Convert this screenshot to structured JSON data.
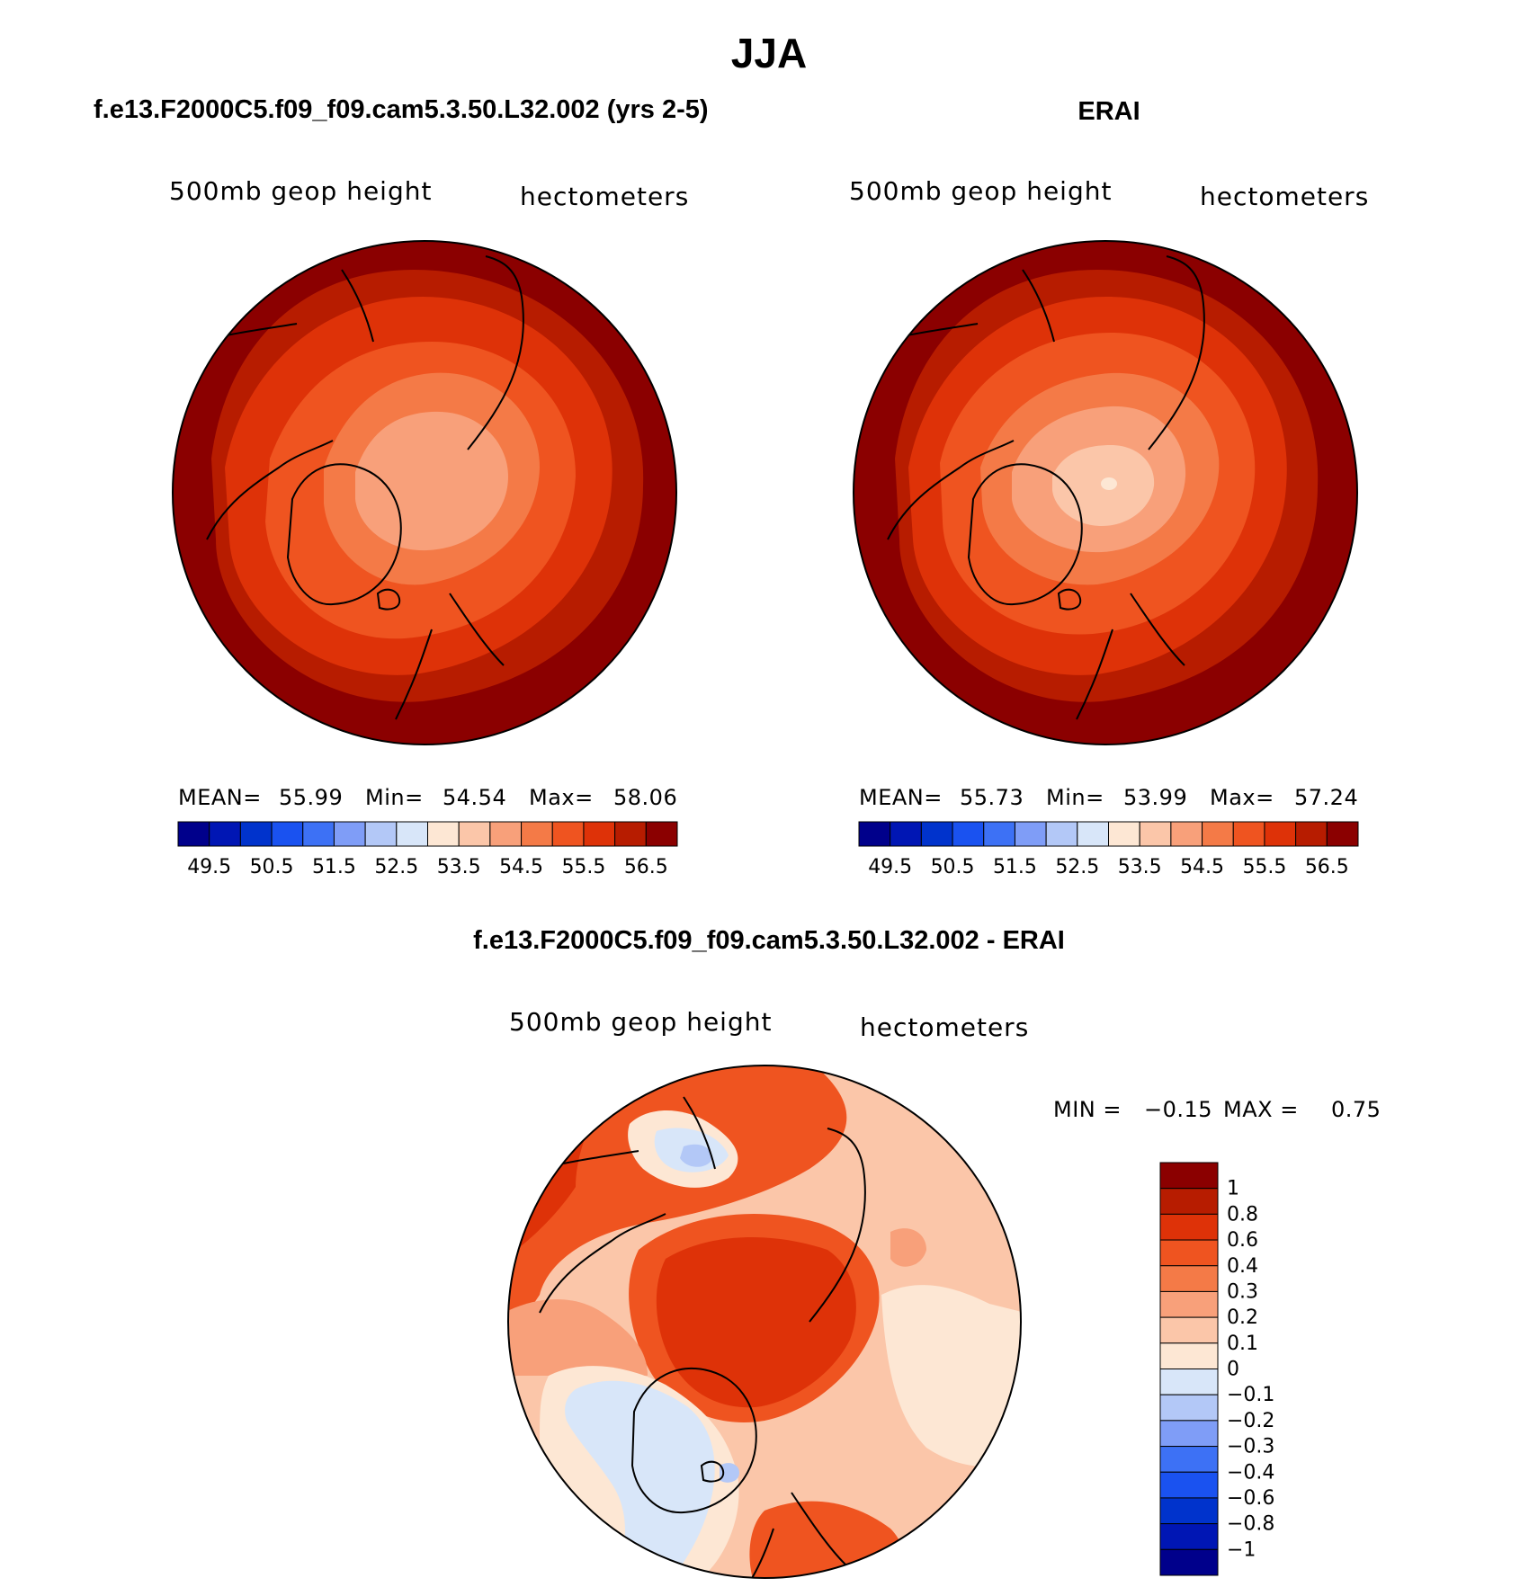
{
  "page": {
    "title": "JJA",
    "diff_title": "f.e13.F2000C5.f09_f09.cam5.3.50.L32.002 - ERAI"
  },
  "colors": {
    "abs_scale": [
      "#00008b",
      "#0016b4",
      "#0033cc",
      "#1a52f0",
      "#3d71f5",
      "#7f9df7",
      "#b3c8f7",
      "#d8e6f9",
      "#fde7d4",
      "#fbc6a9",
      "#f8a07a",
      "#f47a47",
      "#ef5420",
      "#de3208",
      "#b71c00",
      "#8b0000"
    ],
    "diff_scale": [
      "#00008b",
      "#0016b4",
      "#0033cc",
      "#1a52f0",
      "#3d71f5",
      "#7f9df7",
      "#b3c8f7",
      "#d8e6f9",
      "#fde7d4",
      "#fbc6a9",
      "#f8a07a",
      "#f47a47",
      "#ef5420",
      "#de3208",
      "#b71c00",
      "#8b0000"
    ]
  },
  "chart_data": [
    {
      "type": "heatmap",
      "projection": "north-polar-stereographic",
      "title": "f.e13.F2000C5.f09_f09.cam5.3.50.L32.002 (yrs 2-5)",
      "variable": "500mb geop height",
      "units": "hectometers",
      "stats": {
        "mean_label": "MEAN=",
        "mean": "55.99",
        "min_label": "Min=",
        "min": "54.54",
        "max_label": "Max=",
        "max": "58.06"
      },
      "colorbar_ticks": [
        "49.5",
        "50.5",
        "51.5",
        "52.5",
        "53.5",
        "54.5",
        "55.5",
        "56.5"
      ],
      "colorbar_levels": [
        49.5,
        50,
        50.5,
        51,
        51.5,
        52,
        52.5,
        53,
        53.5,
        54,
        54.5,
        55,
        55.5,
        56,
        56.5
      ],
      "contour_levels_pole_to_edge": [
        54.5,
        55,
        55.5,
        56,
        56.5
      ]
    },
    {
      "type": "heatmap",
      "projection": "north-polar-stereographic",
      "title": "ERAI",
      "variable": "500mb geop height",
      "units": "hectometers",
      "stats": {
        "mean_label": "MEAN=",
        "mean": "55.73",
        "min_label": "Min=",
        "min": "53.99",
        "max_label": "Max=",
        "max": "57.24"
      },
      "colorbar_ticks": [
        "49.5",
        "50.5",
        "51.5",
        "52.5",
        "53.5",
        "54.5",
        "55.5",
        "56.5"
      ],
      "colorbar_levels": [
        49.5,
        50,
        50.5,
        51,
        51.5,
        52,
        52.5,
        53,
        53.5,
        54,
        54.5,
        55,
        55.5,
        56,
        56.5
      ],
      "contour_levels_pole_to_edge": [
        53.5,
        54,
        54.5,
        55,
        55.5,
        56,
        56.5
      ]
    },
    {
      "type": "heatmap",
      "projection": "north-polar-stereographic",
      "title": "",
      "variable": "500mb geop height",
      "units": "hectometers",
      "stats": {
        "min_label": "MIN =",
        "min": "−0.15",
        "max_label": "MAX =",
        "max": "0.75"
      },
      "colorbar_ticks": [
        "1",
        "0.8",
        "0.6",
        "0.4",
        "0.3",
        "0.2",
        "0.1",
        "0",
        "−0.1",
        "−0.2",
        "−0.3",
        "−0.4",
        "−0.6",
        "−0.8",
        "−1"
      ],
      "colorbar_levels": [
        1,
        0.8,
        0.6,
        0.4,
        0.3,
        0.2,
        0.1,
        0,
        -0.1,
        -0.2,
        -0.3,
        -0.4,
        -0.6,
        -0.8,
        -1
      ]
    }
  ]
}
